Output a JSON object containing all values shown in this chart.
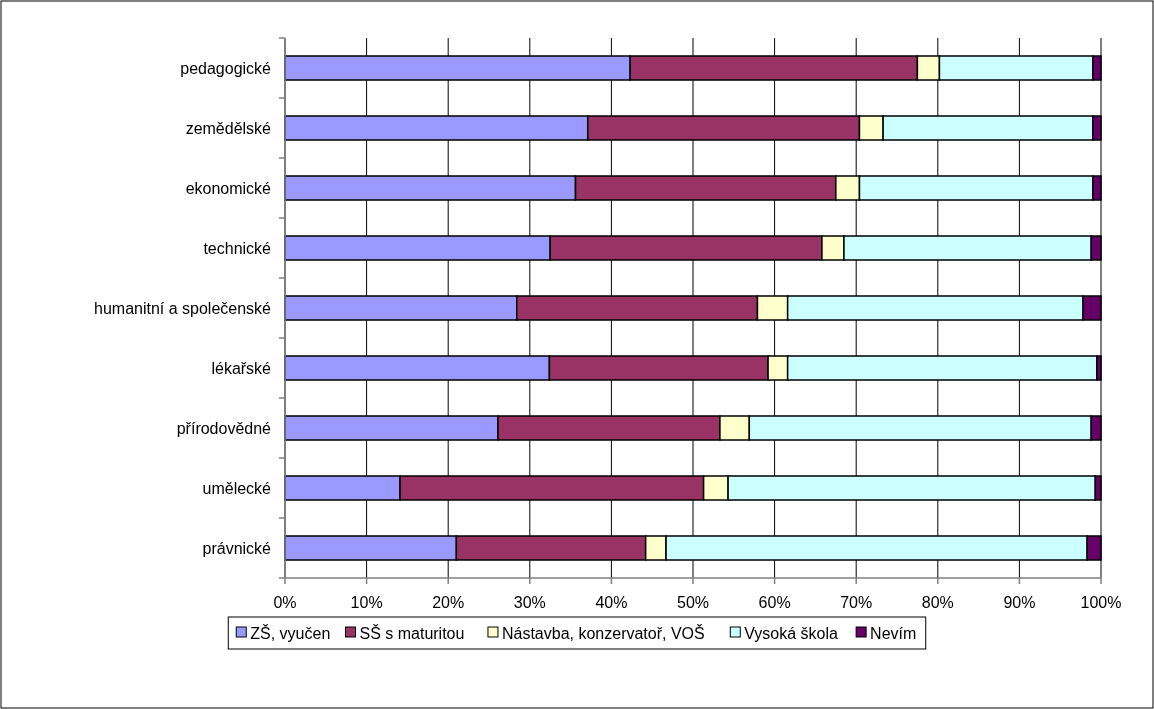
{
  "chart_data": {
    "type": "bar",
    "orientation": "horizontal",
    "stacked": true,
    "categories": [
      "pedagogické",
      "zemědělské",
      "ekonomické",
      "technické",
      "humanitní a společenské",
      "lékařské",
      "přírodovědné",
      "umělecké",
      "právnické"
    ],
    "series": [
      {
        "name": "ZŠ, vyučen",
        "color": "#9999ff",
        "values": [
          42.3,
          37.1,
          35.6,
          32.5,
          28.4,
          32.4,
          26.1,
          14.1,
          21.0
        ]
      },
      {
        "name": "SŠ s maturitou",
        "color": "#993366",
        "values": [
          35.2,
          33.3,
          31.9,
          33.3,
          29.5,
          26.8,
          27.2,
          37.2,
          23.2
        ]
      },
      {
        "name": "Nástavba, konzervatoř, VOŠ",
        "color": "#ffffcc",
        "values": [
          2.7,
          2.9,
          2.9,
          2.7,
          3.7,
          2.4,
          3.6,
          3.0,
          2.5
        ]
      },
      {
        "name": "Vysoká škola",
        "color": "#ccffff",
        "values": [
          18.8,
          25.7,
          28.6,
          30.3,
          36.2,
          37.9,
          41.9,
          45.0,
          51.6
        ]
      },
      {
        "name": "Nevím",
        "color": "#660066",
        "values": [
          1.0,
          1.0,
          1.0,
          1.2,
          2.2,
          0.5,
          1.2,
          0.7,
          1.7
        ]
      }
    ],
    "xlim": [
      0,
      100
    ],
    "xticks": [
      {
        "value": 0,
        "label": "0%"
      },
      {
        "value": 10,
        "label": "10%"
      },
      {
        "value": 20,
        "label": "20%"
      },
      {
        "value": 30,
        "label": "30%"
      },
      {
        "value": 40,
        "label": "40%"
      },
      {
        "value": 50,
        "label": "50%"
      },
      {
        "value": 60,
        "label": "60%"
      },
      {
        "value": 70,
        "label": "70%"
      },
      {
        "value": 80,
        "label": "80%"
      },
      {
        "value": 90,
        "label": "90%"
      },
      {
        "value": 100,
        "label": "100%"
      }
    ],
    "grid": "x",
    "legend": "bottom"
  }
}
